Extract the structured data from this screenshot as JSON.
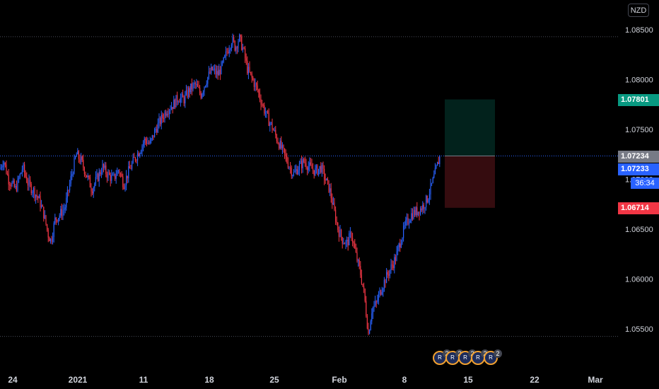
{
  "currency": "NZD",
  "price_axis": {
    "ticks": [
      "1.08500",
      "1.08000",
      "1.07500",
      "1.07000",
      "1.06500",
      "1.06000",
      "1.05500"
    ]
  },
  "time_axis": {
    "ticks": [
      "24",
      "2021",
      "11",
      "18",
      "25",
      "Feb",
      "8",
      "15",
      "22",
      "Mar"
    ]
  },
  "price_tags": {
    "take_profit": "1.07801",
    "current": "1.07234",
    "last": "1.07233",
    "stop_loss": "1.06714",
    "countdown": "36:34"
  },
  "events": [
    {
      "count": "2"
    },
    {
      "count": "2"
    },
    {
      "count": "2"
    },
    {
      "count": "2"
    },
    {
      "count": "2"
    }
  ],
  "colors": {
    "up": "#2962ff",
    "down": "#f23645",
    "take_profit": "#089981",
    "stop_loss": "#f23645",
    "current_price": "#787b86",
    "last_price": "#2962ff"
  },
  "chart_data": {
    "type": "candlestick",
    "symbol_quote": "NZD",
    "ylim": [
      1.0525,
      1.0875
    ],
    "x_ticks": [
      "24",
      "2021",
      "11",
      "18",
      "25",
      "Feb",
      "8",
      "15",
      "22",
      "Mar"
    ],
    "path": [
      [
        0,
        1.071
      ],
      [
        5,
        1.072
      ],
      [
        12,
        1.07
      ],
      [
        22,
        1.069
      ],
      [
        32,
        1.0712
      ],
      [
        40,
        1.0695
      ],
      [
        48,
        1.0688
      ],
      [
        55,
        1.068
      ],
      [
        62,
        1.0665
      ],
      [
        68,
        1.0645
      ],
      [
        72,
        1.0638
      ],
      [
        78,
        1.066
      ],
      [
        85,
        1.0665
      ],
      [
        92,
        1.0672
      ],
      [
        100,
        1.07
      ],
      [
        108,
        1.0725
      ],
      [
        115,
        1.0718
      ],
      [
        122,
        1.0705
      ],
      [
        130,
        1.069
      ],
      [
        138,
        1.0702
      ],
      [
        145,
        1.0712
      ],
      [
        152,
        1.0705
      ],
      [
        160,
        1.07
      ],
      [
        168,
        1.071
      ],
      [
        175,
        1.0695
      ],
      [
        182,
        1.0708
      ],
      [
        190,
        1.072
      ],
      [
        198,
        1.073
      ],
      [
        205,
        1.074
      ],
      [
        212,
        1.0735
      ],
      [
        220,
        1.075
      ],
      [
        228,
        1.076
      ],
      [
        236,
        1.077
      ],
      [
        245,
        1.0775
      ],
      [
        252,
        1.0782
      ],
      [
        260,
        1.078
      ],
      [
        268,
        1.079
      ],
      [
        276,
        1.0795
      ],
      [
        284,
        1.0785
      ],
      [
        292,
        1.08
      ],
      [
        300,
        1.081
      ],
      [
        308,
        1.0805
      ],
      [
        315,
        1.0815
      ],
      [
        322,
        1.083
      ],
      [
        328,
        1.084
      ],
      [
        333,
        1.0832
      ],
      [
        338,
        1.0842
      ],
      [
        344,
        1.083
      ],
      [
        350,
        1.081
      ],
      [
        357,
        1.08
      ],
      [
        364,
        1.079
      ],
      [
        371,
        1.0775
      ],
      [
        378,
        1.0762
      ],
      [
        385,
        1.0752
      ],
      [
        392,
        1.074
      ],
      [
        400,
        1.0728
      ],
      [
        408,
        1.0715
      ],
      [
        415,
        1.0705
      ],
      [
        422,
        1.0712
      ],
      [
        430,
        1.0718
      ],
      [
        438,
        1.0712
      ],
      [
        446,
        1.0708
      ],
      [
        454,
        1.0712
      ],
      [
        460,
        1.07
      ],
      [
        466,
        1.069
      ],
      [
        472,
        1.067
      ],
      [
        478,
        1.065
      ],
      [
        484,
        1.064
      ],
      [
        490,
        1.0635
      ],
      [
        497,
        1.0645
      ],
      [
        503,
        1.0625
      ],
      [
        510,
        1.0605
      ],
      [
        515,
        1.0585
      ],
      [
        521,
        1.0545
      ],
      [
        526,
        1.057
      ],
      [
        532,
        1.0575
      ],
      [
        538,
        1.0588
      ],
      [
        545,
        1.06
      ],
      [
        552,
        1.061
      ],
      [
        560,
        1.0622
      ],
      [
        567,
        1.064
      ],
      [
        574,
        1.0655
      ],
      [
        582,
        1.0665
      ],
      [
        590,
        1.0668
      ],
      [
        597,
        1.0672
      ],
      [
        604,
        1.068
      ],
      [
        611,
        1.0695
      ],
      [
        617,
        1.071
      ],
      [
        622,
        1.0723
      ]
    ],
    "hlines": [
      1.0843,
      1.05425,
      1.07234
    ],
    "position": {
      "type": "long",
      "entry": 1.07234,
      "take_profit": 1.07801,
      "stop_loss": 1.06714
    }
  }
}
